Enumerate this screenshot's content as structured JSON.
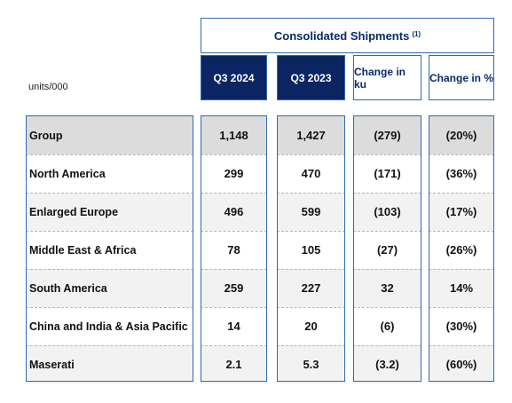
{
  "table": {
    "units": "units/000",
    "group_header": "Consolidated Shipments",
    "group_header_note": "(1)",
    "columns": [
      "Q3 2024",
      "Q3 2023",
      "Change in ku",
      "Change in %"
    ],
    "rows": [
      {
        "label": "Group",
        "values": [
          "1,148",
          "1,427",
          "(279)",
          "(20%)"
        ]
      },
      {
        "label": "North America",
        "values": [
          "299",
          "470",
          "(171)",
          "(36%)"
        ]
      },
      {
        "label": "Enlarged Europe",
        "values": [
          "496",
          "599",
          "(103)",
          "(17%)"
        ]
      },
      {
        "label": "Middle East & Africa",
        "values": [
          "78",
          "105",
          "(27)",
          "(26%)"
        ]
      },
      {
        "label": "South America",
        "values": [
          "259",
          "227",
          "32",
          "14%"
        ]
      },
      {
        "label": "China and India & Asia Pacific",
        "values": [
          "14",
          "20",
          "(6)",
          "(30%)"
        ]
      },
      {
        "label": "Maserati",
        "values": [
          "2.1",
          "5.3",
          "(3.2)",
          "(60%)"
        ]
      }
    ]
  }
}
